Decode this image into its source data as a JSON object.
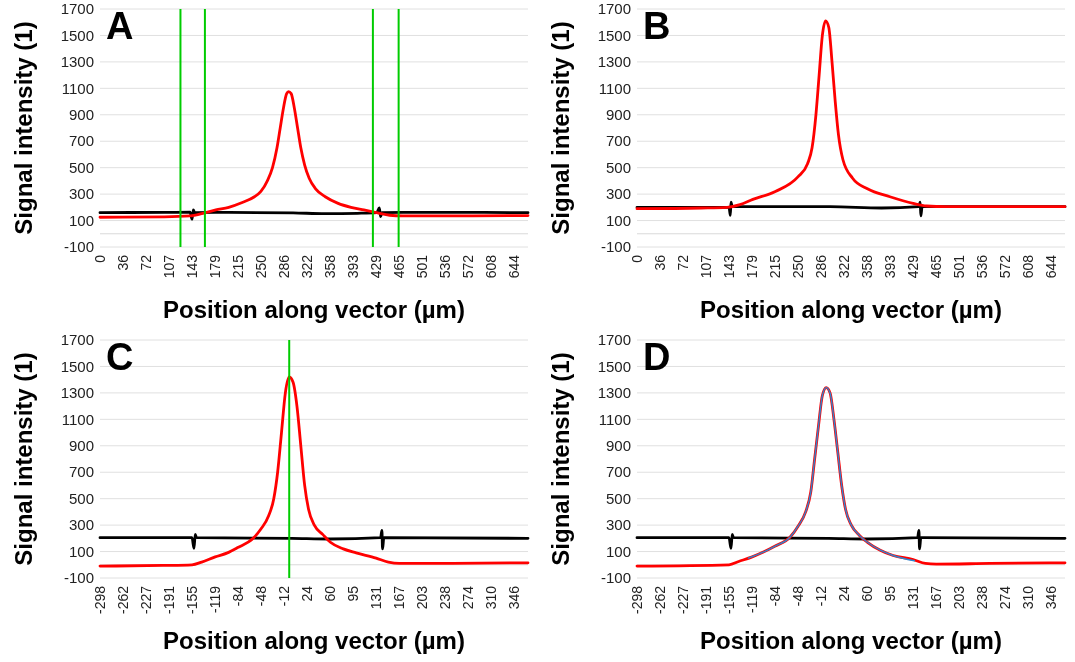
{
  "chart_data": [
    {
      "type": "line",
      "title": "A",
      "xlabel": "Position along vector (µm)",
      "ylabel": "Signal intensity (1)",
      "xlim": [
        0,
        665
      ],
      "xticks": [
        0,
        36,
        72,
        107,
        143,
        179,
        215,
        250,
        286,
        322,
        358,
        393,
        429,
        465,
        501,
        536,
        572,
        608,
        644
      ],
      "ylim": [
        -100,
        1700
      ],
      "yticks": [
        -100,
        100,
        300,
        500,
        700,
        900,
        1100,
        1300,
        1500,
        1700
      ],
      "grid": "y",
      "series": [
        {
          "color": "#000000",
          "x": [
            0,
            100,
            140,
            143,
            145,
            147,
            200,
            300,
            350,
            400,
            430,
            434,
            436,
            438,
            500,
            665
          ],
          "values": [
            160,
            162,
            163,
            110,
            180,
            160,
            162,
            158,
            152,
            155,
            160,
            195,
            130,
            160,
            162,
            160
          ]
        },
        {
          "color": "#ff0000",
          "x": [
            0,
            100,
            140,
            160,
            180,
            200,
            220,
            240,
            250,
            260,
            268,
            275,
            280,
            285,
            290,
            293,
            297,
            302,
            307,
            312,
            318,
            325,
            335,
            350,
            370,
            390,
            410,
            430,
            450,
            470,
            550,
            665
          ],
          "values": [
            125,
            128,
            135,
            155,
            180,
            200,
            235,
            280,
            320,
            400,
            500,
            650,
            800,
            950,
            1060,
            1075,
            1060,
            950,
            800,
            650,
            520,
            420,
            340,
            280,
            230,
            200,
            180,
            160,
            140,
            135,
            135,
            138
          ]
        }
      ],
      "ref_lines": [
        {
          "axis": "x",
          "value": 125,
          "color": "#00cc00"
        },
        {
          "axis": "x",
          "value": 163,
          "color": "#00cc00"
        },
        {
          "axis": "x",
          "value": 424,
          "color": "#00cc00"
        },
        {
          "axis": "x",
          "value": 464,
          "color": "#00cc00"
        }
      ]
    },
    {
      "type": "line",
      "title": "B",
      "xlabel": "Position along vector (µm)",
      "ylabel": "Signal intensity (1)",
      "xlim": [
        0,
        665
      ],
      "xticks": [
        0,
        36,
        72,
        107,
        143,
        179,
        215,
        250,
        286,
        322,
        358,
        393,
        429,
        465,
        501,
        536,
        572,
        608,
        644
      ],
      "ylim": [
        -100,
        1700
      ],
      "yticks": [
        -100,
        100,
        300,
        500,
        700,
        900,
        1100,
        1300,
        1500,
        1700
      ],
      "grid": "y",
      "series": [
        {
          "color": "#000000",
          "x": [
            0,
            143,
            145,
            146,
            148,
            300,
            380,
            438,
            440,
            441,
            443,
            665
          ],
          "values": [
            200,
            200,
            140,
            240,
            205,
            205,
            195,
            205,
            240,
            135,
            205,
            205
          ]
        },
        {
          "color": "#ff0000",
          "x": [
            0,
            100,
            140,
            160,
            180,
            215,
            250,
            265,
            272,
            278,
            283,
            288,
            293,
            298,
            303,
            308,
            313,
            320,
            335,
            358,
            393,
            429,
            450,
            480,
            665
          ],
          "values": [
            190,
            195,
            200,
            220,
            260,
            320,
            430,
            530,
            650,
            900,
            1200,
            1500,
            1610,
            1560,
            1300,
            1000,
            750,
            560,
            420,
            340,
            280,
            230,
            210,
            205,
            205
          ]
        }
      ]
    },
    {
      "type": "line",
      "title": "C",
      "xlabel": "Position along vector (µm)",
      "ylabel": "Signal intensity (1)",
      "xlim": [
        -298,
        367
      ],
      "xticks": [
        -298,
        -262,
        -227,
        -191,
        -155,
        -119,
        -84,
        -48,
        -12,
        24,
        60,
        95,
        131,
        167,
        203,
        238,
        274,
        310,
        346
      ],
      "ylim": [
        -100,
        1700
      ],
      "yticks": [
        -100,
        100,
        300,
        500,
        700,
        900,
        1100,
        1300,
        1500,
        1700
      ],
      "grid": "y",
      "series": [
        {
          "color": "#000000",
          "x": [
            -298,
            -155,
            -152,
            -150,
            -148,
            0,
            60,
            138,
            140,
            141,
            143,
            367
          ],
          "values": [
            205,
            205,
            125,
            230,
            205,
            200,
            195,
            205,
            260,
            120,
            205,
            200
          ]
        },
        {
          "color": "#ff0000",
          "x": [
            -298,
            -200,
            -155,
            -140,
            -119,
            -100,
            -84,
            -60,
            -48,
            -36,
            -28,
            -22,
            -16,
            -10,
            -4,
            2,
            8,
            14,
            20,
            26,
            35,
            48,
            60,
            80,
            100,
            131,
            150,
            167,
            250,
            367
          ],
          "values": [
            -10,
            -5,
            0,
            20,
            60,
            90,
            130,
            200,
            270,
            370,
            500,
            700,
            1000,
            1300,
            1420,
            1380,
            1200,
            900,
            600,
            420,
            300,
            230,
            170,
            120,
            90,
            50,
            20,
            10,
            10,
            15
          ]
        }
      ],
      "ref_lines": [
        {
          "axis": "x",
          "value": -4,
          "color": "#00cc00"
        }
      ]
    },
    {
      "type": "line",
      "title": "D",
      "xlabel": "Position along vector (µm)",
      "ylabel": "Signal intensity (1)",
      "xlim": [
        -298,
        367
      ],
      "xticks": [
        -298,
        -262,
        -227,
        -191,
        -155,
        -119,
        -84,
        -48,
        -12,
        24,
        60,
        95,
        131,
        167,
        203,
        238,
        274,
        310,
        346
      ],
      "ylim": [
        -100,
        1700
      ],
      "yticks": [
        -100,
        100,
        300,
        500,
        700,
        900,
        1100,
        1300,
        1500,
        1700
      ],
      "grid": "y",
      "series": [
        {
          "color": "#000000",
          "x": [
            -298,
            -155,
            -152,
            -150,
            -148,
            0,
            60,
            138,
            140,
            141,
            143,
            367
          ],
          "values": [
            205,
            205,
            125,
            230,
            205,
            200,
            195,
            205,
            260,
            120,
            205,
            200
          ]
        },
        {
          "color": "#ff0000",
          "x": [
            -298,
            -155,
            -140,
            -119,
            -100,
            -84,
            -60,
            -48,
            -36,
            -28,
            -22,
            -16,
            -10,
            -4,
            2,
            8,
            14,
            20,
            26,
            35,
            48,
            60,
            80,
            100,
            131,
            150,
            167,
            250,
            367
          ],
          "values": [
            -10,
            0,
            25,
            60,
            100,
            140,
            210,
            290,
            400,
            550,
            800,
            1050,
            1280,
            1340,
            1300,
            1100,
            850,
            600,
            420,
            300,
            220,
            170,
            110,
            70,
            40,
            10,
            5,
            10,
            15
          ]
        },
        {
          "color": "#2e86d0",
          "x": [
            -125,
            -100,
            -84,
            -60,
            -48,
            -36,
            -28,
            -22,
            -16,
            -10,
            -4,
            2,
            8,
            14,
            20,
            26,
            35,
            48,
            60,
            80,
            100,
            133
          ],
          "values": [
            50,
            100,
            140,
            210,
            290,
            400,
            550,
            800,
            1050,
            1280,
            1340,
            1300,
            1100,
            850,
            600,
            420,
            300,
            220,
            170,
            110,
            70,
            30
          ]
        }
      ]
    }
  ]
}
